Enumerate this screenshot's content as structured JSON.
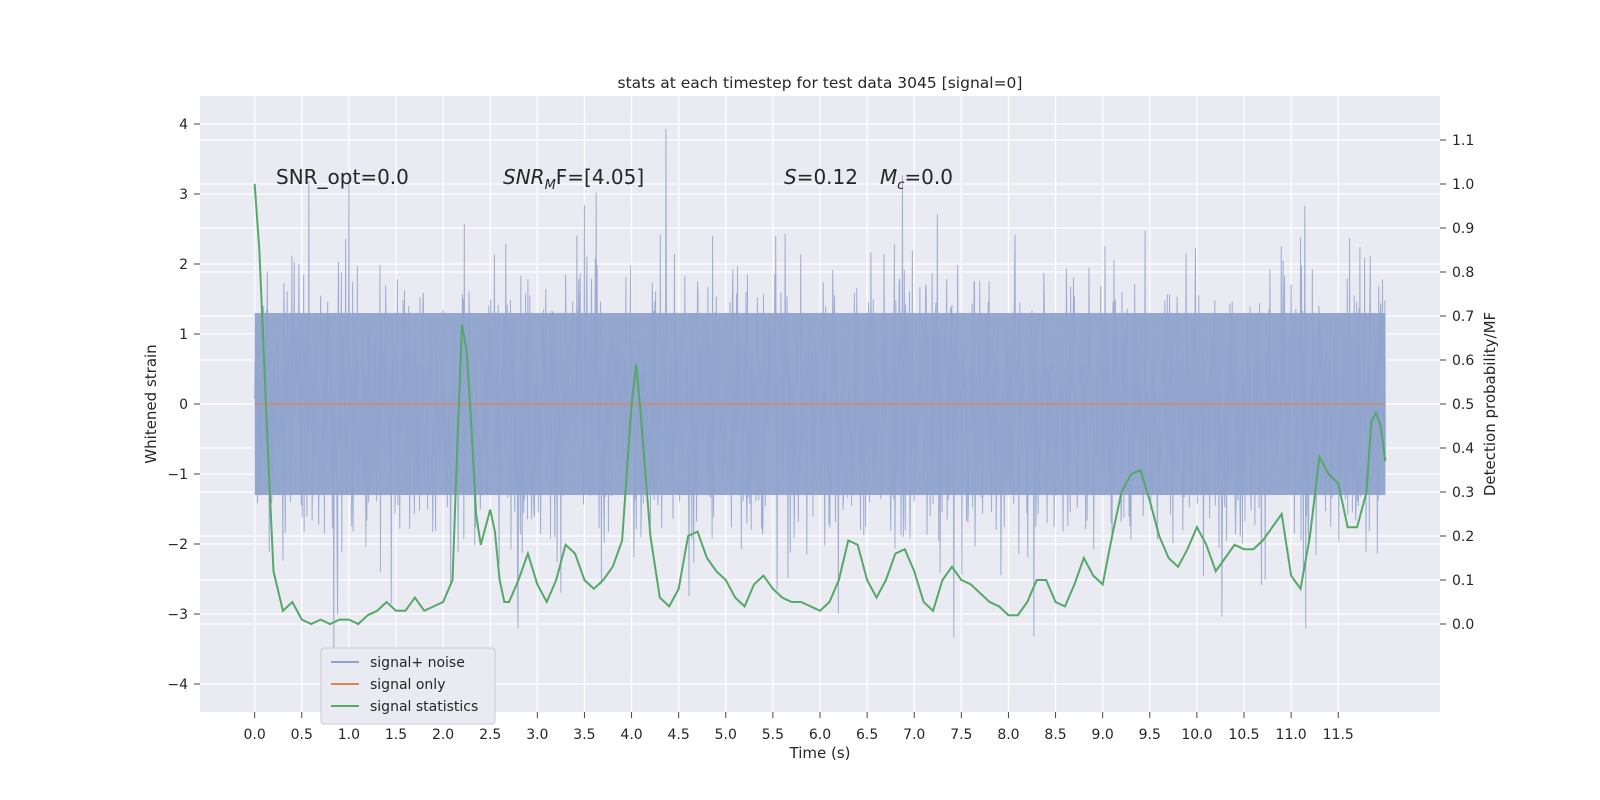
{
  "chart_data": {
    "type": "line",
    "title": "stats at each timestep for test data 3045 [signal=0]",
    "xlabel": "Time (s)",
    "ylabel_left": "Whitened strain",
    "ylabel_right": "Detection probability/MF",
    "xlim": [
      -0.58,
      12.58
    ],
    "ylim_left": [
      -4.4,
      4.4
    ],
    "ylim_right": [
      -0.2,
      1.2
    ],
    "x_ticks": [
      0.0,
      0.5,
      1.0,
      1.5,
      2.0,
      2.5,
      3.0,
      3.5,
      4.0,
      4.5,
      5.0,
      5.5,
      6.0,
      6.5,
      7.0,
      7.5,
      8.0,
      8.5,
      9.0,
      9.5,
      10.0,
      10.5,
      11.0,
      11.5
    ],
    "x_tick_labels": [
      "0.0",
      "0.5",
      "1.0",
      "1.5",
      "2.0",
      "2.5",
      "3.0",
      "3.5",
      "4.0",
      "4.5",
      "5.0",
      "5.5",
      "6.0",
      "6.5",
      "7.0",
      "7.5",
      "8.0",
      "8.5",
      "9.0",
      "9.5",
      "10.0",
      "10.5",
      "11.0",
      "11.5"
    ],
    "y_left_ticks": [
      4,
      3,
      2,
      1,
      0,
      -1,
      -2,
      -3,
      -4
    ],
    "y_left_tick_labels": [
      "4",
      "3",
      "2",
      "1",
      "0",
      "−1",
      "−2",
      "−3",
      "−4"
    ],
    "y_right_ticks": [
      1.1,
      1.0,
      0.9,
      0.8,
      0.7,
      0.6,
      0.5,
      0.4,
      0.3,
      0.2,
      0.1,
      0.0
    ],
    "y_right_tick_labels": [
      "1.1",
      "1.0",
      "0.9",
      "0.8",
      "0.7",
      "0.6",
      "0.5",
      "0.4",
      "0.3",
      "0.2",
      "0.1",
      "0.0"
    ],
    "grid": true,
    "legend_position": "lower-left",
    "annotations": {
      "snr_opt": "SNR_opt=0.0",
      "snr_mf_main": "SNR",
      "snr_mf_sub": "M",
      "snr_mf_rest": "F=[4.05]",
      "s_main": "S",
      "s_rest": "=0.12",
      "mc_main": "M",
      "mc_sub": "c",
      "mc_rest": "=0.0"
    },
    "series": [
      {
        "name": "signal+ noise",
        "color": "#8fa3cc",
        "axis": "left",
        "noise": {
          "t_start": 0.0,
          "t_end": 12.0,
          "core_range": [
            -1.3,
            1.3
          ],
          "typical_range": [
            -2.3,
            2.3
          ],
          "extreme_range": [
            -4.1,
            4.0
          ]
        }
      },
      {
        "name": "signal only",
        "color": "#dd8452",
        "axis": "left",
        "x": [
          0.0,
          12.0
        ],
        "y": [
          0.0,
          0.0
        ]
      },
      {
        "name": "signal statistics",
        "color": "#55a868",
        "axis": "right",
        "x": [
          0.0,
          0.05,
          0.1,
          0.15,
          0.2,
          0.3,
          0.4,
          0.5,
          0.6,
          0.7,
          0.8,
          0.9,
          1.0,
          1.1,
          1.2,
          1.3,
          1.4,
          1.5,
          1.6,
          1.7,
          1.8,
          1.9,
          2.0,
          2.1,
          2.15,
          2.2,
          2.25,
          2.3,
          2.35,
          2.4,
          2.45,
          2.5,
          2.55,
          2.6,
          2.65,
          2.7,
          2.8,
          2.9,
          3.0,
          3.1,
          3.2,
          3.3,
          3.4,
          3.5,
          3.6,
          3.7,
          3.8,
          3.9,
          4.0,
          4.05,
          4.1,
          4.2,
          4.3,
          4.4,
          4.5,
          4.6,
          4.7,
          4.8,
          4.9,
          5.0,
          5.1,
          5.2,
          5.3,
          5.4,
          5.5,
          5.6,
          5.7,
          5.8,
          5.9,
          6.0,
          6.1,
          6.2,
          6.3,
          6.4,
          6.5,
          6.6,
          6.7,
          6.8,
          6.9,
          7.0,
          7.1,
          7.2,
          7.3,
          7.4,
          7.5,
          7.6,
          7.7,
          7.8,
          7.9,
          8.0,
          8.1,
          8.2,
          8.3,
          8.4,
          8.5,
          8.6,
          8.7,
          8.8,
          8.9,
          9.0,
          9.1,
          9.2,
          9.3,
          9.4,
          9.5,
          9.6,
          9.7,
          9.8,
          9.9,
          10.0,
          10.1,
          10.2,
          10.3,
          10.4,
          10.5,
          10.6,
          10.7,
          10.8,
          10.9,
          11.0,
          11.1,
          11.2,
          11.3,
          11.4,
          11.5,
          11.55,
          11.6,
          11.7,
          11.8,
          11.85,
          11.9,
          11.95,
          12.0
        ],
        "y": [
          1.0,
          0.85,
          0.6,
          0.35,
          0.12,
          0.03,
          0.05,
          0.01,
          0.0,
          0.01,
          0.0,
          0.01,
          0.01,
          0.0,
          0.02,
          0.03,
          0.05,
          0.03,
          0.03,
          0.06,
          0.03,
          0.04,
          0.05,
          0.1,
          0.4,
          0.68,
          0.62,
          0.45,
          0.25,
          0.18,
          0.22,
          0.26,
          0.21,
          0.1,
          0.05,
          0.05,
          0.1,
          0.16,
          0.09,
          0.05,
          0.1,
          0.18,
          0.16,
          0.1,
          0.08,
          0.1,
          0.13,
          0.19,
          0.5,
          0.59,
          0.47,
          0.2,
          0.06,
          0.04,
          0.08,
          0.2,
          0.21,
          0.15,
          0.12,
          0.1,
          0.06,
          0.04,
          0.09,
          0.11,
          0.08,
          0.06,
          0.05,
          0.05,
          0.04,
          0.03,
          0.05,
          0.1,
          0.19,
          0.18,
          0.1,
          0.06,
          0.1,
          0.16,
          0.17,
          0.12,
          0.05,
          0.03,
          0.1,
          0.13,
          0.1,
          0.09,
          0.07,
          0.05,
          0.04,
          0.02,
          0.02,
          0.05,
          0.1,
          0.1,
          0.05,
          0.04,
          0.09,
          0.15,
          0.11,
          0.09,
          0.2,
          0.3,
          0.34,
          0.35,
          0.28,
          0.2,
          0.15,
          0.13,
          0.17,
          0.22,
          0.18,
          0.12,
          0.15,
          0.18,
          0.17,
          0.17,
          0.19,
          0.22,
          0.25,
          0.11,
          0.08,
          0.2,
          0.38,
          0.34,
          0.32,
          0.27,
          0.22,
          0.22,
          0.3,
          0.46,
          0.48,
          0.45,
          0.37
        ]
      }
    ]
  }
}
